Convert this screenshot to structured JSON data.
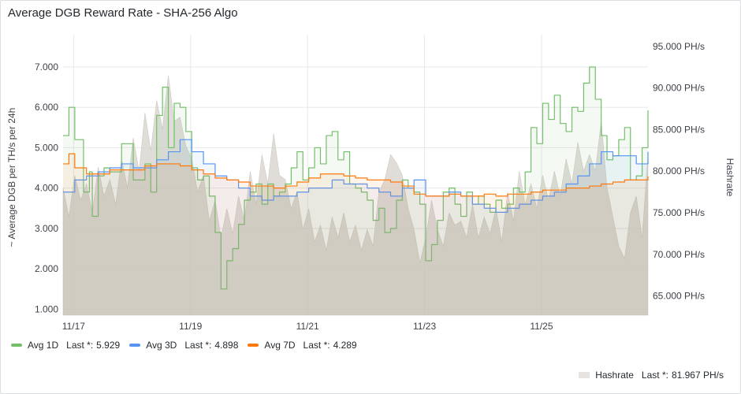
{
  "panel": {
    "title": "Average DGB Reward Rate - SHA-256 Algo"
  },
  "chart_data": {
    "type": "line",
    "title": "Average DGB Reward Rate - SHA-256 Algo",
    "ylabel": "~ Average DGB per TH/s per 24h",
    "y2label": "Hashrate",
    "ylim": [
      0.85,
      7.8
    ],
    "y2lim": [
      62700,
      96400
    ],
    "xlim": [
      0,
      10
    ],
    "x_ticks": [
      {
        "x": 0.18,
        "label": "11/17"
      },
      {
        "x": 2.18,
        "label": "11/19"
      },
      {
        "x": 4.18,
        "label": "11/21"
      },
      {
        "x": 6.18,
        "label": "11/23"
      },
      {
        "x": 8.18,
        "label": "11/25"
      }
    ],
    "y_ticks": [
      {
        "value": 1,
        "label": "1.000"
      },
      {
        "value": 2,
        "label": "2.000"
      },
      {
        "value": 3,
        "label": "3.000"
      },
      {
        "value": 4,
        "label": "4.000"
      },
      {
        "value": 5,
        "label": "5.000"
      },
      {
        "value": 6,
        "label": "6.000"
      },
      {
        "value": 7,
        "label": "7.000"
      }
    ],
    "y2_ticks": [
      {
        "value": 65000,
        "label": "65.000 PH/s"
      },
      {
        "value": 70000,
        "label": "70.000 PH/s"
      },
      {
        "value": 75000,
        "label": "75.000 PH/s"
      },
      {
        "value": 80000,
        "label": "80.000 PH/s"
      },
      {
        "value": 85000,
        "label": "85.000 PH/s"
      },
      {
        "value": 90000,
        "label": "90.000 PH/s"
      },
      {
        "value": 95000,
        "label": "95.000 PH/s"
      }
    ],
    "series": [
      {
        "name": "Avg 1D",
        "last_label": "Last *:",
        "last": "5.929",
        "color": "#73bf69",
        "axis": "left",
        "x": [
          0,
          0.1,
          0.2,
          0.35,
          0.45,
          0.5,
          0.6,
          0.7,
          0.8,
          1.0,
          1.2,
          1.4,
          1.5,
          1.6,
          1.7,
          1.8,
          1.9,
          2.0,
          2.1,
          2.2,
          2.3,
          2.4,
          2.5,
          2.6,
          2.7,
          2.8,
          2.9,
          3.0,
          3.1,
          3.2,
          3.3,
          3.4,
          3.5,
          3.6,
          3.7,
          3.8,
          3.9,
          4.0,
          4.1,
          4.2,
          4.3,
          4.4,
          4.5,
          4.6,
          4.7,
          4.8,
          4.9,
          5.0,
          5.1,
          5.2,
          5.3,
          5.4,
          5.5,
          5.6,
          5.7,
          5.8,
          5.9,
          6.0,
          6.1,
          6.2,
          6.3,
          6.4,
          6.5,
          6.6,
          6.7,
          6.8,
          6.9,
          7.0,
          7.1,
          7.2,
          7.3,
          7.4,
          7.5,
          7.6,
          7.7,
          7.8,
          7.9,
          8.0,
          8.1,
          8.2,
          8.3,
          8.4,
          8.5,
          8.6,
          8.7,
          8.8,
          8.9,
          9.0,
          9.1,
          9.2,
          9.3,
          9.4,
          9.5,
          9.6,
          9.7,
          9.8,
          9.9,
          10.0
        ],
        "values": [
          5.3,
          6.0,
          5.2,
          3.9,
          4.4,
          3.3,
          4.3,
          4.5,
          4.4,
          5.1,
          4.2,
          4.6,
          3.9,
          5.8,
          6.5,
          5.0,
          6.1,
          6.0,
          5.4,
          4.5,
          4.2,
          4.3,
          3.8,
          2.9,
          1.5,
          2.2,
          2.5,
          3.1,
          3.7,
          3.9,
          4.1,
          3.6,
          4.1,
          3.8,
          3.9,
          4.1,
          4.5,
          4.9,
          4.2,
          4.5,
          5.0,
          4.6,
          5.3,
          5.4,
          4.7,
          4.9,
          4.1,
          4.0,
          3.9,
          3.7,
          3.2,
          3.5,
          2.9,
          3.0,
          3.7,
          4.2,
          4.0,
          3.9,
          3.6,
          2.2,
          2.6,
          3.2,
          3.9,
          4.0,
          3.6,
          3.3,
          3.9,
          3.6,
          3.8,
          3.6,
          3.4,
          3.7,
          3.5,
          3.6,
          4.0,
          3.9,
          4.4,
          5.5,
          5.1,
          6.1,
          5.7,
          6.3,
          5.6,
          5.4,
          6.0,
          5.9,
          6.6,
          7.0,
          6.2,
          5.3,
          4.7,
          4.8,
          5.2,
          5.5,
          4.2,
          4.3,
          5.0,
          5.929
        ]
      },
      {
        "name": "Avg 3D",
        "last_label": "Last *:",
        "last": "4.898",
        "color": "#5794f2",
        "axis": "left",
        "x": [
          0,
          0.2,
          0.4,
          0.6,
          0.8,
          1.0,
          1.2,
          1.4,
          1.6,
          1.8,
          2.0,
          2.2,
          2.4,
          2.6,
          2.8,
          3.0,
          3.2,
          3.4,
          3.6,
          3.8,
          4.0,
          4.2,
          4.4,
          4.6,
          4.8,
          5.0,
          5.2,
          5.4,
          5.6,
          5.8,
          6.0,
          6.2,
          6.4,
          6.6,
          6.8,
          7.0,
          7.2,
          7.4,
          7.6,
          7.8,
          8.0,
          8.2,
          8.4,
          8.6,
          8.8,
          9.0,
          9.2,
          9.4,
          9.6,
          9.8,
          10.0
        ],
        "values": [
          3.9,
          4.2,
          4.3,
          4.4,
          4.5,
          4.6,
          4.5,
          4.5,
          4.7,
          4.9,
          5.2,
          4.9,
          4.6,
          4.3,
          4.2,
          4.0,
          3.8,
          3.7,
          3.8,
          3.8,
          3.9,
          4.0,
          4.0,
          4.2,
          4.1,
          4.1,
          4.0,
          3.9,
          3.8,
          4.0,
          4.2,
          3.8,
          3.8,
          3.9,
          3.8,
          3.6,
          3.5,
          3.4,
          3.5,
          3.6,
          3.7,
          3.8,
          3.9,
          4.1,
          4.3,
          4.6,
          4.9,
          4.8,
          4.8,
          4.6,
          4.898
        ]
      },
      {
        "name": "Avg 7D",
        "last_label": "Last *:",
        "last": "4.289",
        "color": "#ff780a",
        "axis": "left",
        "x": [
          0,
          0.1,
          0.2,
          0.4,
          0.6,
          0.8,
          1.0,
          1.2,
          1.4,
          1.6,
          1.8,
          2.0,
          2.2,
          2.4,
          2.6,
          2.8,
          3.0,
          3.2,
          3.4,
          3.6,
          3.8,
          4.0,
          4.2,
          4.4,
          4.6,
          4.8,
          5.0,
          5.2,
          5.4,
          5.6,
          5.8,
          6.0,
          6.2,
          6.4,
          6.6,
          6.8,
          7.0,
          7.2,
          7.4,
          7.6,
          7.8,
          8.0,
          8.2,
          8.4,
          8.6,
          8.8,
          9.0,
          9.2,
          9.4,
          9.6,
          9.8,
          10.0
        ],
        "values": [
          4.6,
          4.85,
          4.5,
          4.35,
          4.35,
          4.45,
          4.45,
          4.45,
          4.55,
          4.6,
          4.6,
          4.55,
          4.45,
          4.35,
          4.25,
          4.2,
          4.15,
          4.05,
          4.05,
          4.0,
          4.05,
          4.15,
          4.25,
          4.35,
          4.35,
          4.3,
          4.25,
          4.2,
          4.2,
          4.15,
          4.05,
          3.85,
          3.8,
          3.8,
          3.85,
          3.8,
          3.8,
          3.85,
          3.8,
          3.85,
          3.85,
          3.9,
          3.95,
          3.95,
          4.0,
          4.0,
          4.05,
          4.1,
          4.15,
          4.2,
          4.2,
          4.289
        ]
      },
      {
        "name": "Hashrate",
        "last_label": "Last *:",
        "last": "81.967 PH/s",
        "color": "#d8d4cf",
        "axis": "right",
        "x": [
          0,
          0.1,
          0.2,
          0.3,
          0.4,
          0.5,
          0.6,
          0.7,
          0.8,
          0.9,
          1.0,
          1.1,
          1.2,
          1.3,
          1.4,
          1.5,
          1.6,
          1.7,
          1.8,
          1.9,
          2.0,
          2.1,
          2.2,
          2.3,
          2.4,
          2.5,
          2.6,
          2.7,
          2.8,
          2.9,
          3.0,
          3.1,
          3.2,
          3.3,
          3.4,
          3.5,
          3.6,
          3.7,
          3.8,
          3.9,
          4.0,
          4.1,
          4.2,
          4.3,
          4.4,
          4.5,
          4.6,
          4.7,
          4.8,
          4.9,
          5.0,
          5.1,
          5.2,
          5.3,
          5.4,
          5.5,
          5.6,
          5.7,
          5.8,
          5.9,
          6.0,
          6.1,
          6.2,
          6.3,
          6.4,
          6.5,
          6.6,
          6.7,
          6.8,
          6.9,
          7.0,
          7.1,
          7.2,
          7.3,
          7.4,
          7.5,
          7.6,
          7.7,
          7.8,
          7.9,
          8.0,
          8.1,
          8.2,
          8.3,
          8.4,
          8.5,
          8.6,
          8.7,
          8.8,
          8.9,
          9.0,
          9.1,
          9.2,
          9.3,
          9.4,
          9.5,
          9.6,
          9.7,
          9.8,
          9.9,
          10.0
        ],
        "values": [
          78000,
          74500,
          79500,
          76500,
          78500,
          75000,
          80500,
          77000,
          79000,
          76000,
          81500,
          78000,
          84000,
          80000,
          87000,
          82500,
          88500,
          85000,
          91500,
          86000,
          86500,
          83000,
          81500,
          77500,
          79500,
          74000,
          76500,
          72000,
          75500,
          72500,
          77000,
          74000,
          80000,
          76000,
          82000,
          78500,
          84500,
          79500,
          79000,
          75500,
          77500,
          73000,
          75500,
          71500,
          73500,
          70500,
          74500,
          72000,
          75000,
          71500,
          73500,
          70500,
          73000,
          71000,
          77500,
          79000,
          82000,
          81000,
          79500,
          75500,
          73000,
          69000,
          72000,
          76500,
          73000,
          71000,
          75000,
          73500,
          74000,
          72000,
          76000,
          72000,
          74500,
          72500,
          75500,
          71500,
          77500,
          74000,
          80000,
          76000,
          78500,
          75500,
          79500,
          76500,
          80000,
          77000,
          81500,
          78500,
          83500,
          80000,
          82000,
          80000,
          86000,
          78000,
          74500,
          71000,
          69500,
          75000,
          77000,
          72000,
          81967
        ]
      }
    ]
  }
}
